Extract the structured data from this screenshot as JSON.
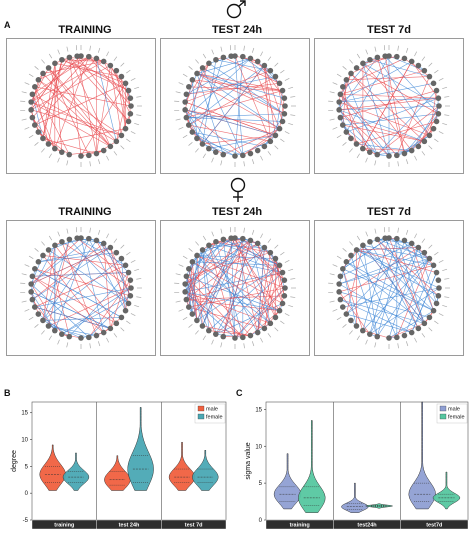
{
  "panel_a": {
    "letter": "A",
    "male_symbol": "male-symbol",
    "female_symbol": "female-symbol",
    "columns": [
      "TRAINING",
      "TEST 24h",
      "TEST 7d"
    ],
    "rows": [
      "male",
      "female"
    ],
    "edge_colors": {
      "positive": "#e8494e",
      "negative": "#3d86d6"
    },
    "node_color": "#666666"
  },
  "chart_data": [
    {
      "panel": "B",
      "type": "violin",
      "categories": [
        "training",
        "test 24h",
        "test 7d"
      ],
      "ylabel": "degree",
      "ylim": [
        -5,
        17
      ],
      "yticks": [
        -5,
        0,
        5,
        10,
        15
      ],
      "legend": {
        "position": "top-right",
        "entries": [
          "male",
          "female"
        ]
      },
      "series": [
        {
          "name": "male",
          "color": "#f0603f",
          "values": [
            {
              "min": 0.5,
              "max": 9,
              "median": 3.5,
              "q1": 2,
              "q3": 5
            },
            {
              "min": 0.5,
              "max": 7,
              "median": 2.5,
              "q1": 1.5,
              "q3": 4
            },
            {
              "min": 0.5,
              "max": 9.5,
              "median": 3,
              "q1": 2,
              "q3": 4.5
            }
          ]
        },
        {
          "name": "female",
          "color": "#4aa8b4",
          "values": [
            {
              "min": 0.5,
              "max": 7.5,
              "median": 3,
              "q1": 2,
              "q3": 4
            },
            {
              "min": 0.5,
              "max": 16,
              "median": 4.5,
              "q1": 2,
              "q3": 7
            },
            {
              "min": 0.5,
              "max": 8,
              "median": 3,
              "q1": 2,
              "q3": 4.5
            }
          ]
        }
      ]
    },
    {
      "panel": "C",
      "type": "violin",
      "categories": [
        "training",
        "test24h",
        "test7d"
      ],
      "ylabel": "sigma value",
      "ylim": [
        0,
        16
      ],
      "yticks": [
        0,
        5,
        10,
        15
      ],
      "legend": {
        "position": "top-right",
        "entries": [
          "male",
          "female"
        ]
      },
      "series": [
        {
          "name": "male",
          "color": "#8f9fd3",
          "values": [
            {
              "min": 1.5,
              "max": 9,
              "median": 3.5,
              "q1": 2.5,
              "q3": 4.5
            },
            {
              "min": 1,
              "max": 5,
              "median": 1.8,
              "q1": 1.4,
              "q3": 2.2
            },
            {
              "min": 1.5,
              "max": 16,
              "median": 3.5,
              "q1": 2.5,
              "q3": 5
            }
          ]
        },
        {
          "name": "female",
          "color": "#56c7a0",
          "values": [
            {
              "min": 1,
              "max": 13.5,
              "median": 3,
              "q1": 2,
              "q3": 4.5
            },
            {
              "min": 1.6,
              "max": 2.2,
              "median": 1.9,
              "q1": 1.8,
              "q3": 2
            },
            {
              "min": 1.5,
              "max": 6.5,
              "median": 3,
              "q1": 2.5,
              "q3": 3.5
            }
          ]
        }
      ]
    }
  ]
}
